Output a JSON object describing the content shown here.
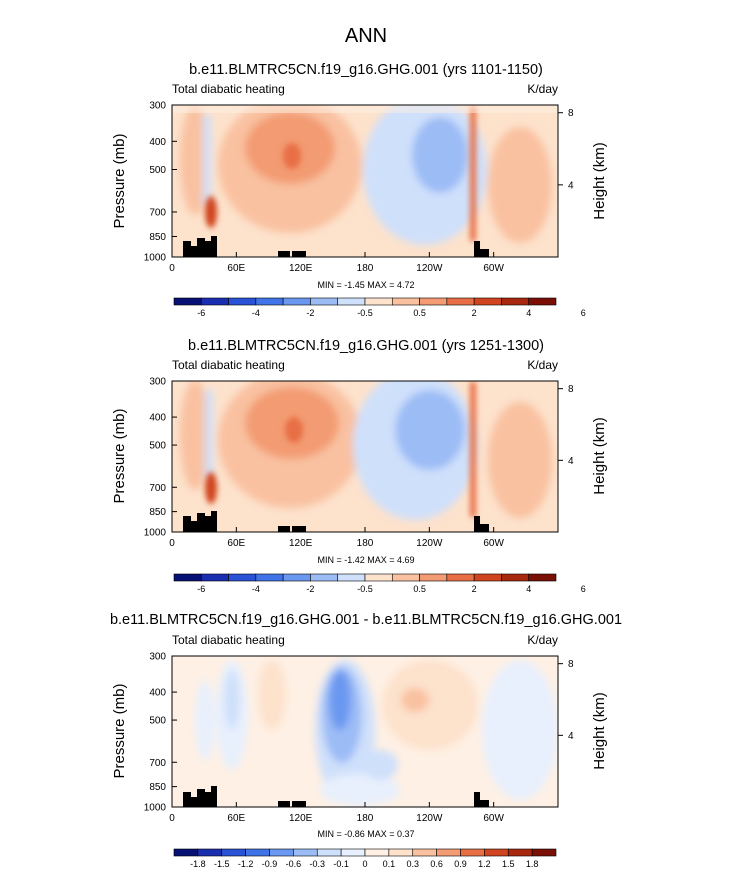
{
  "page": {
    "title": "ANN",
    "field_name": "Total diabatic heating",
    "units": "K/day"
  },
  "chart_data": [
    {
      "type": "heatmap",
      "title": "b.e11.BLMTRC5CN.f19_g16.GHG.001 (yrs 1101-1150)",
      "subtitle_left": "Total diabatic heating",
      "subtitle_right": "K/day",
      "xlabel": "",
      "ylabel": "Pressure (mb)",
      "ylabel_right": "Height (km)",
      "x_ticks": [
        "0",
        "60E",
        "120E",
        "180",
        "120W",
        "60W"
      ],
      "x_tick_values": [
        0,
        60,
        120,
        180,
        240,
        300
      ],
      "xlim": [
        0,
        360
      ],
      "y_ticks": [
        "300",
        "400",
        "500",
        "700",
        "850",
        "1000"
      ],
      "y_tick_values": [
        300,
        400,
        500,
        700,
        850,
        1000
      ],
      "ylim": [
        1000,
        300
      ],
      "right_ticks": [
        "8",
        "4"
      ],
      "right_tick_values": [
        8,
        4
      ],
      "stats": "MIN = -1.45  MAX =  4.72",
      "colorbar_labels": [
        "-6",
        "-4",
        "-2",
        "-0.5",
        "0.5",
        "2",
        "4",
        "6"
      ],
      "levels": [
        -6,
        -5,
        -4,
        -3,
        -2,
        -1,
        -0.5,
        0,
        0.5,
        1,
        2,
        3,
        4,
        5,
        6
      ],
      "features": [
        {
          "name": "indian-ocean-heating",
          "lon": 115,
          "p": 500,
          "value": 3.2
        },
        {
          "name": "africa-heating",
          "lon": 30,
          "p": 780,
          "value": 4.7
        },
        {
          "name": "pacific-cooling",
          "lon": 215,
          "p": 500,
          "value": -1.4
        },
        {
          "name": "andes-heating",
          "lon": 292,
          "p": 500,
          "value": 3.5
        }
      ]
    },
    {
      "type": "heatmap",
      "title": "b.e11.BLMTRC5CN.f19_g16.GHG.001 (yrs 1251-1300)",
      "subtitle_left": "Total diabatic heating",
      "subtitle_right": "K/day",
      "xlabel": "",
      "ylabel": "Pressure (mb)",
      "ylabel_right": "Height (km)",
      "x_ticks": [
        "0",
        "60E",
        "120E",
        "180",
        "120W",
        "60W"
      ],
      "x_tick_values": [
        0,
        60,
        120,
        180,
        240,
        300
      ],
      "xlim": [
        0,
        360
      ],
      "y_ticks": [
        "300",
        "400",
        "500",
        "700",
        "850",
        "1000"
      ],
      "y_tick_values": [
        300,
        400,
        500,
        700,
        850,
        1000
      ],
      "ylim": [
        1000,
        300
      ],
      "right_ticks": [
        "8",
        "4"
      ],
      "right_tick_values": [
        8,
        4
      ],
      "stats": "MIN = -1.42  MAX =  4.69",
      "colorbar_labels": [
        "-6",
        "-4",
        "-2",
        "-0.5",
        "0.5",
        "2",
        "4",
        "6"
      ],
      "levels": [
        -6,
        -5,
        -4,
        -3,
        -2,
        -1,
        -0.5,
        0,
        0.5,
        1,
        2,
        3,
        4,
        5,
        6
      ],
      "features": [
        {
          "name": "indian-ocean-heating",
          "lon": 115,
          "p": 500,
          "value": 3.3
        },
        {
          "name": "africa-heating",
          "lon": 30,
          "p": 780,
          "value": 4.7
        },
        {
          "name": "pacific-cooling",
          "lon": 210,
          "p": 500,
          "value": -1.4
        },
        {
          "name": "andes-heating",
          "lon": 292,
          "p": 500,
          "value": 3.5
        }
      ]
    },
    {
      "type": "heatmap",
      "title": "b.e11.BLMTRC5CN.f19_g16.GHG.001 - b.e11.BLMTRC5CN.f19_g16.GHG.001",
      "subtitle_left": "Total diabatic heating",
      "subtitle_right": "K/day",
      "xlabel": "",
      "ylabel": "Pressure (mb)",
      "ylabel_right": "Height (km)",
      "x_ticks": [
        "0",
        "60E",
        "120E",
        "180",
        "120W",
        "60W"
      ],
      "x_tick_values": [
        0,
        60,
        120,
        180,
        240,
        300
      ],
      "xlim": [
        0,
        360
      ],
      "y_ticks": [
        "300",
        "400",
        "500",
        "700",
        "850",
        "1000"
      ],
      "y_tick_values": [
        300,
        400,
        500,
        700,
        850,
        1000
      ],
      "ylim": [
        1000,
        300
      ],
      "right_ticks": [
        "8",
        "4"
      ],
      "right_tick_values": [
        8,
        4
      ],
      "stats": "MIN = -0.86  MAX =  0.37",
      "colorbar_labels": [
        "-1.8",
        "-1.5",
        "-1.2",
        "-0.9",
        "-0.6",
        "-0.3",
        "-0.1",
        "0",
        "0.1",
        "0.3",
        "0.6",
        "0.9",
        "1.2",
        "1.5",
        "1.8"
      ],
      "levels": [
        -1.8,
        -1.5,
        -1.2,
        -0.9,
        -0.6,
        -0.3,
        -0.1,
        0,
        0.1,
        0.3,
        0.6,
        0.9,
        1.2,
        1.5,
        1.8
      ],
      "features": [
        {
          "name": "pacific-cooling-difference",
          "lon": 150,
          "p": 480,
          "value": -0.86
        },
        {
          "name": "atlantic-warming-difference",
          "lon": 235,
          "p": 500,
          "value": 0.37
        }
      ]
    }
  ],
  "colors": {
    "fourteen_step_palette": [
      "#061173",
      "#1a2fb0",
      "#2a52d6",
      "#3f73e7",
      "#6a98f0",
      "#9cbcf6",
      "#cfe0fb",
      "#fde2cc",
      "#f9c1a0",
      "#f39b72",
      "#e86e45",
      "#d0441f",
      "#a8280f",
      "#7a0f05"
    ],
    "sixteen_step_palette": [
      "#061173",
      "#1a2fb0",
      "#2a52d6",
      "#3f73e7",
      "#6a98f0",
      "#9cbcf6",
      "#cfe0fb",
      "#e8f0fd",
      "#fef0e4",
      "#fde2cc",
      "#f9c1a0",
      "#f39b72",
      "#e86e45",
      "#d0441f",
      "#a8280f",
      "#7a0f05"
    ],
    "land": "#000000"
  }
}
